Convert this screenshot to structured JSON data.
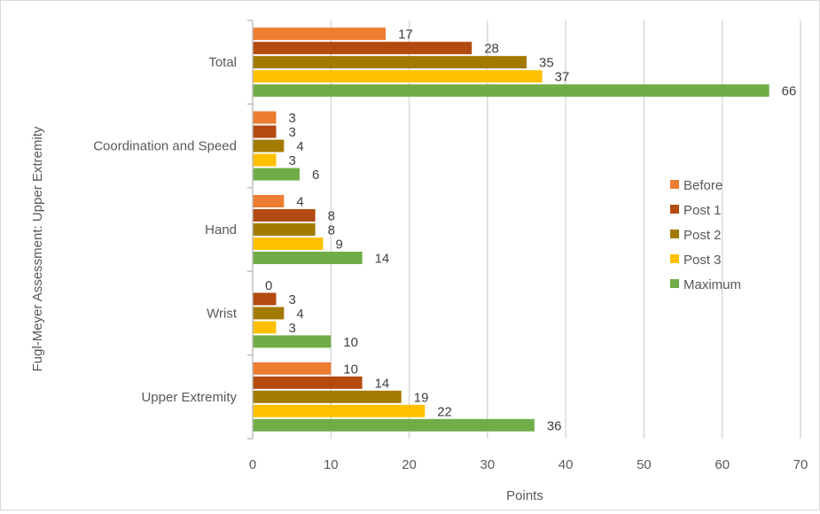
{
  "chart_data": {
    "type": "bar",
    "orientation": "horizontal",
    "categories": [
      "Upper Extremity",
      "Wrist",
      "Hand",
      "Coordination and Speed",
      "Total"
    ],
    "series": [
      {
        "name": "Before",
        "color": "#ED7D31",
        "values": [
          10,
          0,
          4,
          3,
          17
        ]
      },
      {
        "name": "Post 1",
        "color": "#B34A10",
        "values": [
          14,
          3,
          8,
          3,
          28
        ]
      },
      {
        "name": "Post 2",
        "color": "#A37A00",
        "values": [
          19,
          4,
          8,
          4,
          35
        ]
      },
      {
        "name": "Post 3",
        "color": "#FFC000",
        "values": [
          22,
          3,
          9,
          3,
          37
        ]
      },
      {
        "name": "Maximum",
        "color": "#70AD47",
        "values": [
          36,
          10,
          14,
          6,
          66
        ]
      }
    ],
    "xlabel": "Points",
    "ylabel": "Fugl-Meyer Assessment: Upper Extremity",
    "xlim": [
      0,
      70
    ],
    "xticks": [
      0,
      10,
      20,
      30,
      40,
      50,
      60,
      70
    ],
    "grid": true,
    "legend_position": "right",
    "data_labels": true
  }
}
